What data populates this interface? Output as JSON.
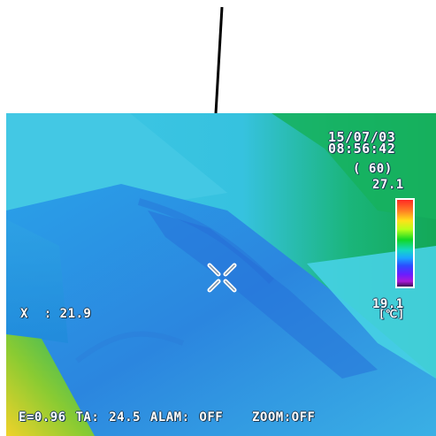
{
  "overlay": {
    "date": "15/07/03",
    "time": "08:56:42",
    "emissivity_setting": "( 60)",
    "scale_max": "27.1",
    "scale_min": "19.1",
    "unit": "[℃]",
    "spot_reading": "X  : 21.9",
    "status_line": "E=0.96 TA: 24.5 ALAM: OFF   ZOOM:OFF"
  },
  "colors": {
    "background": "#ffffff",
    "arrow": "#000000",
    "thermal_cool": "#2f8fe0",
    "thermal_mid": "#3fc3e6",
    "thermal_warm_green": "#19b86a",
    "thermal_hot_corner": "#d7d52a"
  },
  "icons": {
    "arrow": "annotation-arrow-icon",
    "crosshair": "crosshair-icon",
    "color_scale": "color-scale-bar"
  }
}
